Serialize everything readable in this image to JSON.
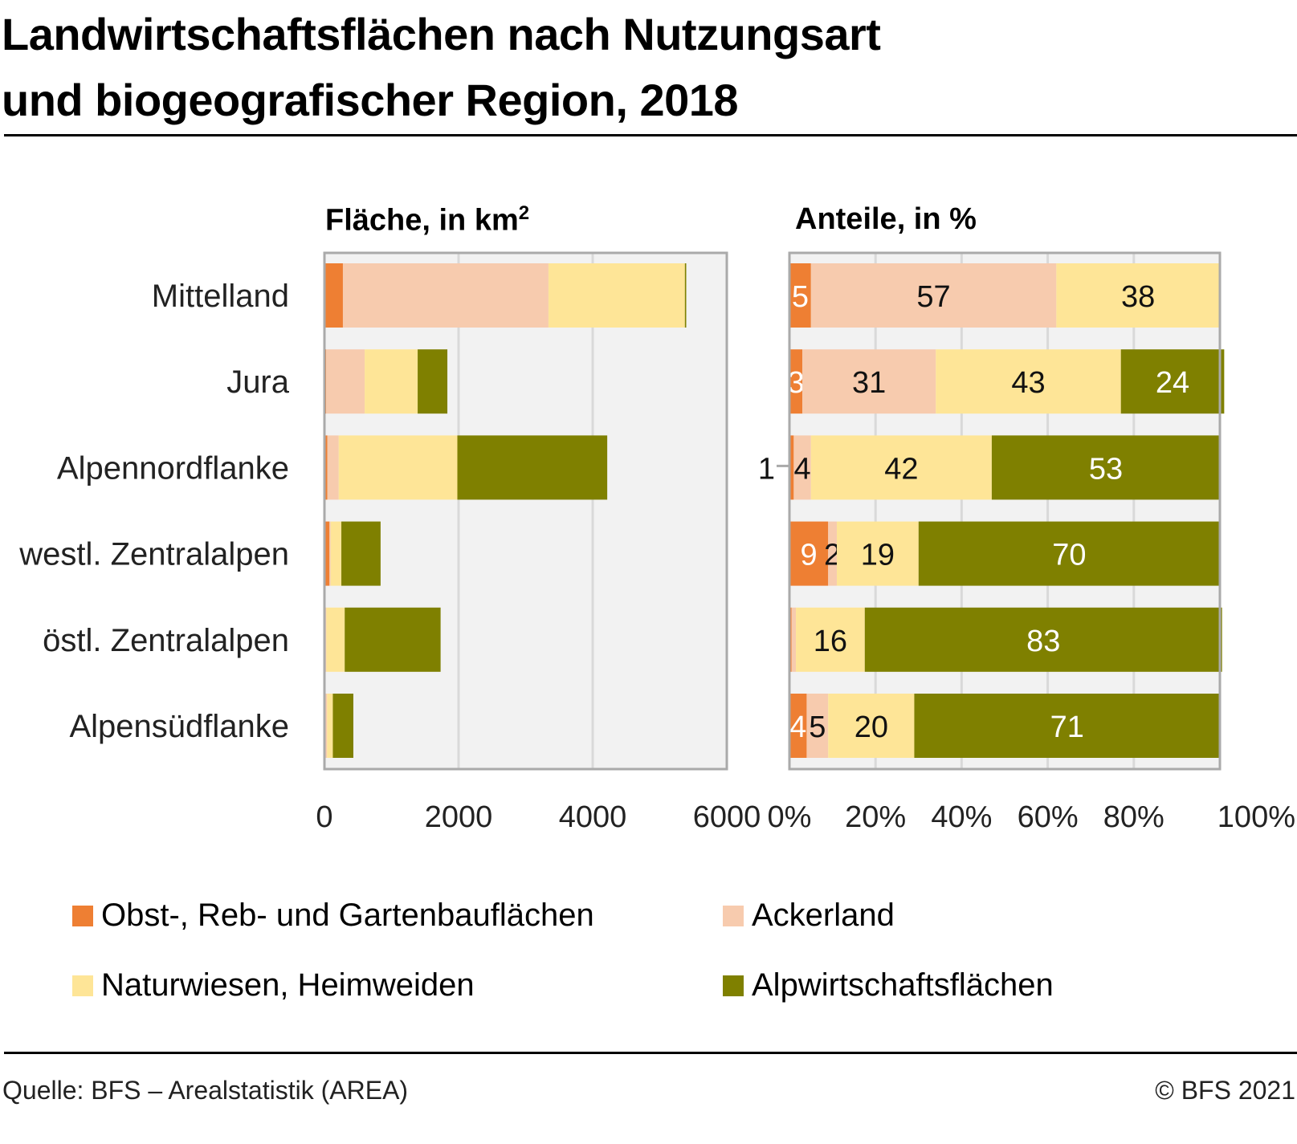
{
  "title_line1": "Landwirtschaftsflächen nach Nutzungsart",
  "title_line2": "und biogeografischer Region, 2018",
  "source": "Quelle: BFS – Arealstatistik (AREA)",
  "copyright": "© BFS 2021",
  "colors": {
    "obst": "#ee7f33",
    "acker": "#f7cbae",
    "natur": "#fee597",
    "alp": "#7f8000",
    "plot_bg": "#f2f2f2",
    "grid": "#d9d9d9"
  },
  "legend": [
    {
      "label": "Obst-, Reb- und Gartenbauflächen",
      "color": "#ee7f33"
    },
    {
      "label": "Ackerland",
      "color": "#f7cbae"
    },
    {
      "label": "Naturwiesen, Heimweiden",
      "color": "#fee597"
    },
    {
      "label": "Alpwirtschaftsflächen",
      "color": "#7f8000"
    }
  ],
  "chart_data": [
    {
      "type": "bar",
      "orientation": "horizontal",
      "stacked": true,
      "title": "Fläche, in km²",
      "title_main": "Fläche, in km",
      "title_sup": "2",
      "categories": [
        "Mittelland",
        "Jura",
        "Alpennordflanke",
        "westl. Zentralalpen",
        "östl. Zentralalpen",
        "Alpensüdflanke"
      ],
      "xlim": [
        0,
        6000
      ],
      "xticks": [
        "0",
        "2000",
        "4000",
        "6000"
      ],
      "xtick_values": [
        0,
        2000,
        4000,
        6000
      ],
      "grid": true,
      "series": [
        {
          "name": "Obst-, Reb- und Gartenbauflächen",
          "values": [
            275,
            25,
            42,
            75,
            10,
            17
          ]
        },
        {
          "name": "Ackerland",
          "values": [
            3065,
            575,
            170,
            17,
            17,
            22
          ]
        },
        {
          "name": "Naturwiesen, Heimweiden",
          "values": [
            2035,
            790,
            1770,
            160,
            275,
            86
          ]
        },
        {
          "name": "Alpwirtschaftsflächen",
          "values": [
            20,
            443,
            2235,
            585,
            1430,
            306
          ]
        }
      ]
    },
    {
      "type": "bar",
      "orientation": "horizontal",
      "stacked": true,
      "title": "Anteile, in %",
      "categories": [
        "Mittelland",
        "Jura",
        "Alpennordflanke",
        "westl. Zentralalpen",
        "östl. Zentralalpen",
        "Alpensüdflanke"
      ],
      "xlim": [
        0,
        100
      ],
      "xticks": [
        "0%",
        "20%",
        "40%",
        "60%",
        "80%",
        "100%"
      ],
      "xtick_values": [
        0,
        20,
        40,
        60,
        80,
        100
      ],
      "grid": true,
      "series": [
        {
          "name": "Obst-, Reb- und Gartenbauflächen",
          "values": [
            5,
            3,
            1,
            9,
            0.5,
            4
          ],
          "labels": [
            "5",
            "3",
            "1",
            "9",
            "",
            "4"
          ]
        },
        {
          "name": "Ackerland",
          "values": [
            57,
            31,
            4,
            2,
            1,
            5
          ],
          "labels": [
            "57",
            "31",
            "4",
            "2",
            "",
            "5"
          ]
        },
        {
          "name": "Naturwiesen, Heimweiden",
          "values": [
            38,
            43,
            42,
            19,
            16,
            20
          ],
          "labels": [
            "38",
            "43",
            "42",
            "19",
            "16",
            "20"
          ]
        },
        {
          "name": "Alpwirtschaftsflächen",
          "values": [
            0,
            24,
            53,
            70,
            83,
            71
          ],
          "labels": [
            "",
            "24",
            "53",
            "70",
            "83",
            "71"
          ]
        }
      ]
    }
  ]
}
